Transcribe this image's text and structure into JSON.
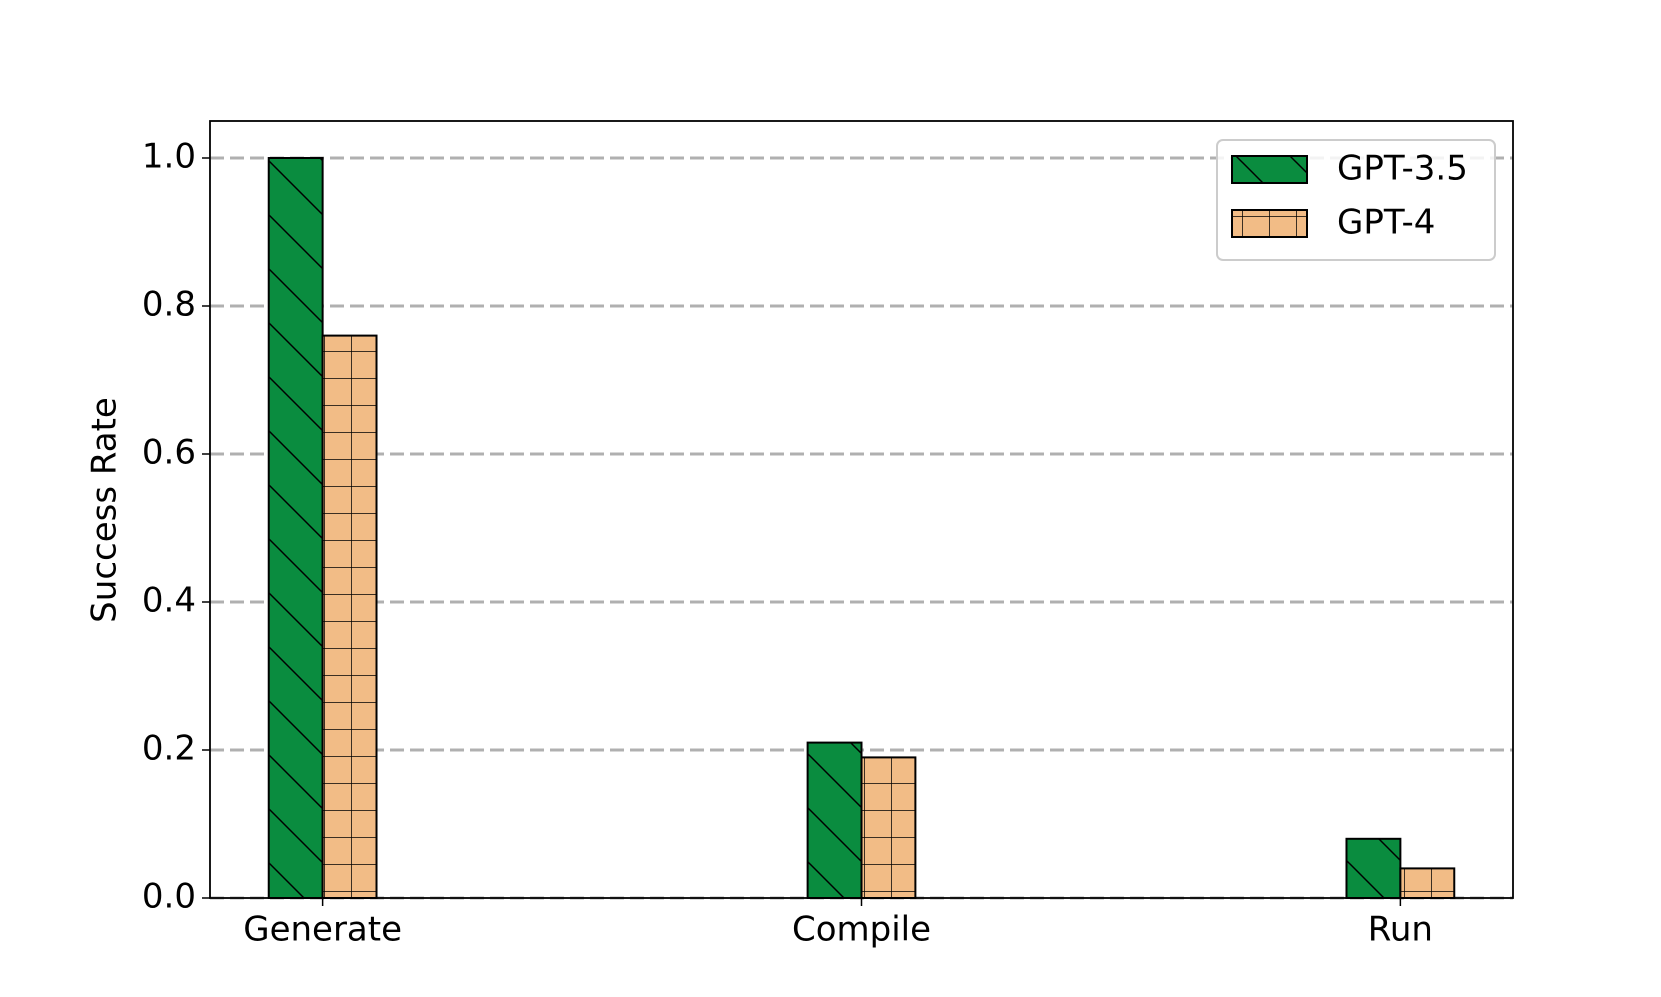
{
  "chart_data": {
    "type": "bar",
    "categories": [
      "Generate",
      "Compile",
      "Run"
    ],
    "series": [
      {
        "name": "GPT-3.5",
        "color": "#0a8c3f",
        "values": [
          1.0,
          0.21,
          0.08
        ]
      },
      {
        "name": "GPT-4",
        "color": "#f2bc86",
        "values": [
          0.76,
          0.19,
          0.04
        ]
      }
    ],
    "y_label": "Success Rate",
    "ylim": [
      0,
      1.05
    ],
    "yticks": [
      {
        "value": 0,
        "label": "0.0"
      },
      0.2,
      0.4,
      0.6,
      0.8,
      {
        "value": 1,
        "label": "1.0"
      }
    ],
    "grid": true,
    "legend": "upper right"
  }
}
